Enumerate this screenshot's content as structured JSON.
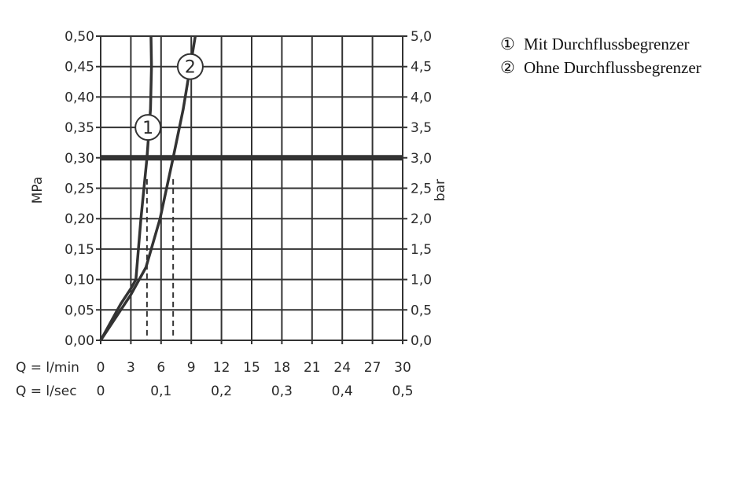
{
  "chart_data": {
    "type": "line",
    "ylabel_left": "MPa",
    "ylabel_right": "bar",
    "xlabel_rows": [
      "Q = l/min",
      "Q = l/sec"
    ],
    "xlim": [
      0,
      30
    ],
    "ylim": [
      0,
      0.5
    ],
    "grid": true,
    "x_ticks_lmin": [
      "0",
      "3",
      "6",
      "9",
      "12",
      "15",
      "18",
      "21",
      "24",
      "27",
      "30"
    ],
    "x_ticks_lsec": [
      {
        "v": 0,
        "label": "0"
      },
      {
        "v": 6,
        "label": "0,1"
      },
      {
        "v": 12,
        "label": "0,2"
      },
      {
        "v": 18,
        "label": "0,3"
      },
      {
        "v": 24,
        "label": "0,4"
      },
      {
        "v": 30,
        "label": "0,5"
      }
    ],
    "y_ticks_left": [
      "0,00",
      "0,05",
      "0,10",
      "0,15",
      "0,20",
      "0,25",
      "0,30",
      "0,35",
      "0,40",
      "0,45",
      "0,50"
    ],
    "y_ticks_right": [
      "0,0",
      "0,5",
      "1,0",
      "1,5",
      "2,0",
      "2,5",
      "3,0",
      "3,5",
      "4,0",
      "4,5",
      "5,0"
    ],
    "reference_line_mpa": 0.3,
    "series": [
      {
        "name": "1",
        "x": [
          0,
          2,
          3,
          3.5,
          4.0,
          4.6,
          4.95,
          5.05,
          5.0
        ],
        "y": [
          0,
          0.06,
          0.085,
          0.1,
          0.2,
          0.3,
          0.38,
          0.45,
          0.5
        ],
        "label_at": [
          4.7,
          0.35
        ],
        "dashed_drop_x": 4.6
      },
      {
        "name": "2",
        "x": [
          0,
          2,
          3,
          4.5,
          5.9,
          7.2,
          8.2,
          8.9,
          9.4
        ],
        "y": [
          0,
          0.05,
          0.075,
          0.12,
          0.2,
          0.3,
          0.38,
          0.45,
          0.5
        ],
        "label_at": [
          8.9,
          0.45
        ],
        "dashed_drop_x": 7.2
      }
    ],
    "legend": [
      {
        "num": "①",
        "text": "Mit Durchflussbegrenzer"
      },
      {
        "num": "②",
        "text": "Ohne Durchflussbegrenzer"
      }
    ],
    "legend_position": "right",
    "colors": {
      "line": "#333333",
      "grid": "#333333"
    }
  }
}
